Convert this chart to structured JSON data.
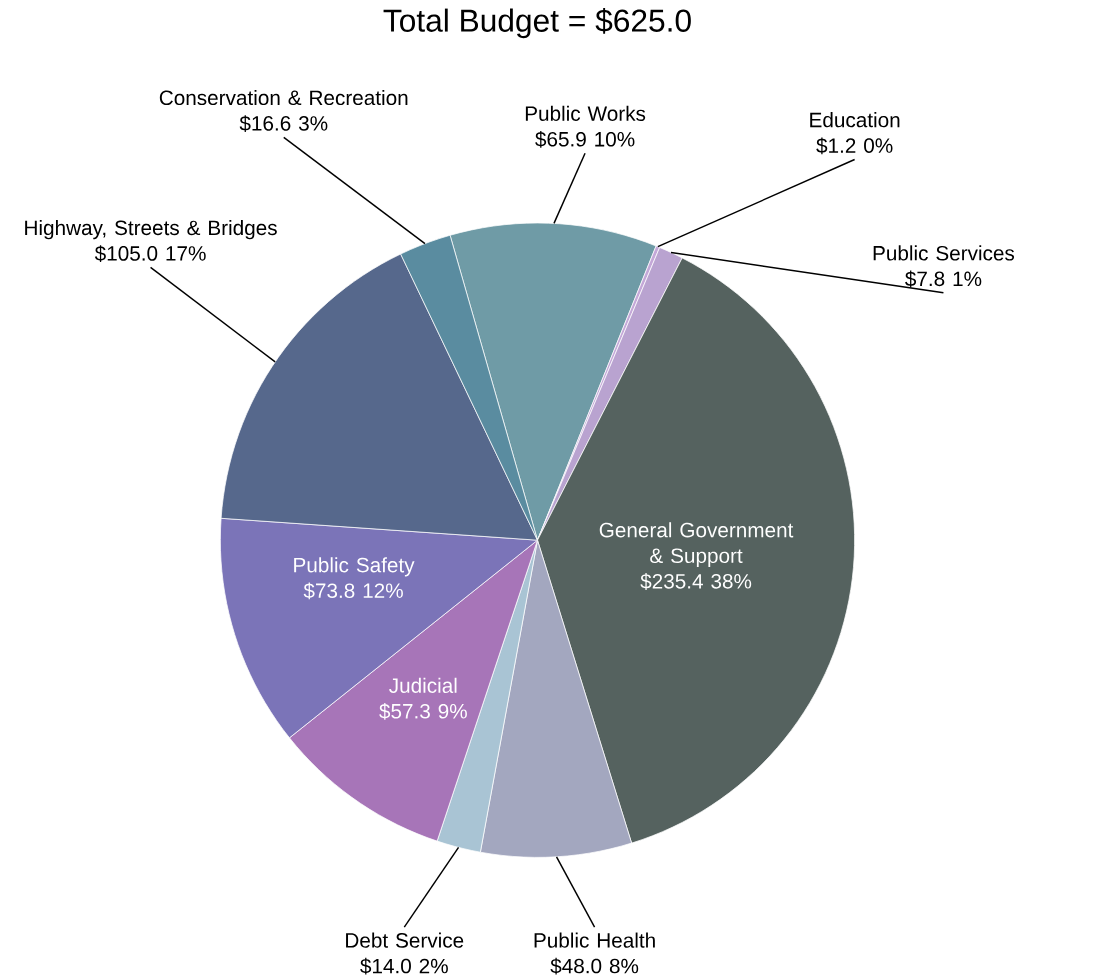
{
  "chart_data": {
    "type": "pie",
    "title": "Total Budget = $625.0",
    "categories": [
      "Public Works",
      "Education",
      "Public Services",
      "General Government & Support",
      "Public Health",
      "Debt  Service",
      "Judicial",
      "Public Safety",
      "Highway, Streets & Bridges",
      "Conservation & Recreation"
    ],
    "values": [
      65.9,
      1.2,
      7.8,
      235.4,
      48.0,
      14.0,
      57.3,
      73.8,
      105.0,
      16.6
    ],
    "value_labels": [
      "$65.9   10%",
      "$1.2   0%",
      "$7.8   1%",
      "$235.4  38%",
      "$48.0  8%",
      "$14.0   2%",
      "$57.3   9%",
      "$73.8   12%",
      "$105.0  17%",
      "$16.6   3%"
    ],
    "colors": [
      "#6f9ba6",
      "#c4a8d8",
      "#b9a3d0",
      "#55625f",
      "#a3a7bf",
      "#a9c4d4",
      "#a775b8",
      "#7b74b8",
      "#56688c",
      "#5a8ca0"
    ]
  }
}
